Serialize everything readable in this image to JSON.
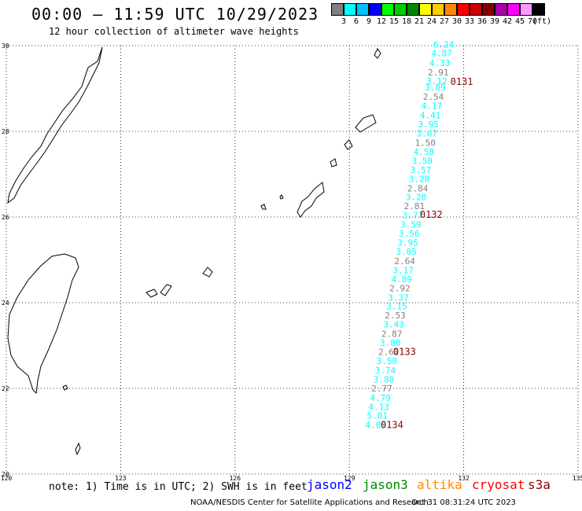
{
  "header": {
    "title": "00:00 – 11:59 UTC 10/29/2023",
    "subtitle": "12 hour collection of altimeter wave heights"
  },
  "legend": {
    "labels": [
      "3",
      "6",
      "9",
      "12",
      "15",
      "18",
      "21",
      "24",
      "27",
      "30",
      "33",
      "36",
      "39",
      "42",
      "45",
      "70",
      "(ft)"
    ],
    "colors": [
      "#808080",
      "#00ffff",
      "#00c0ff",
      "#0000ff",
      "#00ff00",
      "#00cc00",
      "#008800",
      "#ffff00",
      "#ffcc00",
      "#ff8800",
      "#ff0000",
      "#cc0000",
      "#880000",
      "#aa00aa",
      "#ff00ff",
      "#ff99ff",
      "#000000"
    ]
  },
  "map": {
    "lon_ticks": [
      "120",
      "123",
      "126",
      "129",
      "132",
      "135"
    ],
    "lat_ticks": [
      "30",
      "28",
      "26",
      "24",
      "22",
      "20"
    ],
    "lon_range": [
      120,
      135
    ],
    "lat_range": [
      20,
      30
    ],
    "grid": true
  },
  "observations": [
    {
      "v": "6.24",
      "c": "#00ffff",
      "lat": 29.95,
      "lon": 131.2
    },
    {
      "v": "4.87",
      "c": "#00ffff",
      "lat": 29.75,
      "lon": 131.15
    },
    {
      "v": "4.33",
      "c": "#00ffff",
      "lat": 29.52,
      "lon": 131.1
    },
    {
      "v": "2.91",
      "c": "#808080",
      "lat": 29.3,
      "lon": 131.06
    },
    {
      "v": "3.12",
      "c": "#00ffff",
      "lat": 29.1,
      "lon": 131.02
    },
    {
      "v": "3.09",
      "c": "#00ffff",
      "lat": 28.95,
      "lon": 130.98
    },
    {
      "v": "2.54",
      "c": "#808080",
      "lat": 28.73,
      "lon": 130.93
    },
    {
      "v": "4.17",
      "c": "#00ffff",
      "lat": 28.52,
      "lon": 130.89
    },
    {
      "v": "4.41",
      "c": "#00ffff",
      "lat": 28.3,
      "lon": 130.85
    },
    {
      "v": "3.95",
      "c": "#00ffff",
      "lat": 28.09,
      "lon": 130.8
    },
    {
      "v": "3.67",
      "c": "#00ffff",
      "lat": 27.88,
      "lon": 130.76
    },
    {
      "v": "1.50",
      "c": "#808080",
      "lat": 27.66,
      "lon": 130.72
    },
    {
      "v": "4.58",
      "c": "#00ffff",
      "lat": 27.45,
      "lon": 130.68
    },
    {
      "v": "3.58",
      "c": "#00ffff",
      "lat": 27.24,
      "lon": 130.64
    },
    {
      "v": "3.57",
      "c": "#00ffff",
      "lat": 27.03,
      "lon": 130.6
    },
    {
      "v": "3.28",
      "c": "#00ffff",
      "lat": 26.82,
      "lon": 130.56
    },
    {
      "v": "2.84",
      "c": "#808080",
      "lat": 26.6,
      "lon": 130.52
    },
    {
      "v": "3.20",
      "c": "#00ffff",
      "lat": 26.39,
      "lon": 130.48
    },
    {
      "v": "2.81",
      "c": "#808080",
      "lat": 26.18,
      "lon": 130.43
    },
    {
      "v": "3.77",
      "c": "#00ffff",
      "lat": 25.97,
      "lon": 130.39
    },
    {
      "v": "3.59",
      "c": "#00ffff",
      "lat": 25.75,
      "lon": 130.34
    },
    {
      "v": "3.56",
      "c": "#00ffff",
      "lat": 25.54,
      "lon": 130.3
    },
    {
      "v": "3.95",
      "c": "#00ffff",
      "lat": 25.33,
      "lon": 130.26
    },
    {
      "v": "3.05",
      "c": "#00ffff",
      "lat": 25.12,
      "lon": 130.22
    },
    {
      "v": "2.64",
      "c": "#808080",
      "lat": 24.9,
      "lon": 130.18
    },
    {
      "v": "3.17",
      "c": "#00ffff",
      "lat": 24.69,
      "lon": 130.14
    },
    {
      "v": "4.09",
      "c": "#00ffff",
      "lat": 24.48,
      "lon": 130.1
    },
    {
      "v": "2.92",
      "c": "#808080",
      "lat": 24.27,
      "lon": 130.05
    },
    {
      "v": "3.37",
      "c": "#00ffff",
      "lat": 24.05,
      "lon": 130.01
    },
    {
      "v": "3.15",
      "c": "#00ffff",
      "lat": 23.84,
      "lon": 129.97
    },
    {
      "v": "2.53",
      "c": "#808080",
      "lat": 23.63,
      "lon": 129.93
    },
    {
      "v": "3.43",
      "c": "#00ffff",
      "lat": 23.42,
      "lon": 129.89
    },
    {
      "v": "2.87",
      "c": "#808080",
      "lat": 23.2,
      "lon": 129.84
    },
    {
      "v": "3.80",
      "c": "#00ffff",
      "lat": 22.99,
      "lon": 129.8
    },
    {
      "v": "2.62",
      "c": "#808080",
      "lat": 22.78,
      "lon": 129.76
    },
    {
      "v": "3.50",
      "c": "#00ffff",
      "lat": 22.57,
      "lon": 129.71
    },
    {
      "v": "3.74",
      "c": "#00ffff",
      "lat": 22.35,
      "lon": 129.67
    },
    {
      "v": "3.80",
      "c": "#00ffff",
      "lat": 22.14,
      "lon": 129.63
    },
    {
      "v": "2.77",
      "c": "#808080",
      "lat": 21.93,
      "lon": 129.58
    },
    {
      "v": "4.79",
      "c": "#00ffff",
      "lat": 21.71,
      "lon": 129.54
    },
    {
      "v": "4.13",
      "c": "#00ffff",
      "lat": 21.5,
      "lon": 129.5
    },
    {
      "v": "5.01",
      "c": "#00ffff",
      "lat": 21.29,
      "lon": 129.46
    },
    {
      "v": "4.09",
      "c": "#00ffff",
      "lat": 21.07,
      "lon": 129.42
    }
  ],
  "time_labels": [
    {
      "t": "0131",
      "lat": 29.08,
      "lon": 131.65
    },
    {
      "t": "0132",
      "lat": 25.98,
      "lon": 130.85
    },
    {
      "t": "0133",
      "lat": 22.78,
      "lon": 130.15
    },
    {
      "t": "0134",
      "lat": 21.07,
      "lon": 129.82
    }
  ],
  "footer": {
    "note": "note: 1) Time is in UTC; 2) SWH is in feet",
    "satellites": [
      {
        "name": "jason2",
        "color": "#0000ff"
      },
      {
        "name": "jason3",
        "color": "#008800"
      },
      {
        "name": "altika",
        "color": "#ff8800"
      },
      {
        "name": "cryosat",
        "color": "#ff0000"
      },
      {
        "name": "s3a",
        "color": "#880000"
      }
    ],
    "credit": "NOAA/NESDIS Center for Satellite Applications and Research",
    "timestamp": "Oct 31 08:31:24 UTC 2023"
  }
}
